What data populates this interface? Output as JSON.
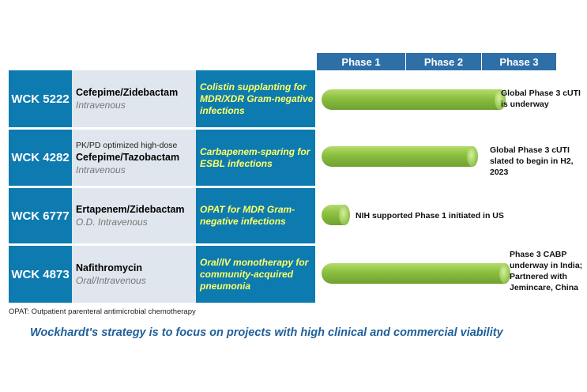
{
  "phases": [
    "Phase 1",
    "Phase 2",
    "Phase 3"
  ],
  "rows": [
    {
      "code": "WCK 5222",
      "pre": "",
      "drug": "Cefepime/Zidebactam",
      "route": "Intravenous",
      "indication": "Colistin supplanting for MDR/XDR Gram-negative infections",
      "status": "Global Phase 3  cUTI is underway",
      "progress_phase": 3.1
    },
    {
      "code": "WCK 4282",
      "pre": "PK/PD optimized  high-dose",
      "drug": "Cefepime/Tazobactam",
      "route": "Intravenous",
      "indication": "Carbapenem-sparing for ESBL infections",
      "status": "Global Phase 3  cUTI slated to begin in H2, 2023",
      "progress_phase": 2.9
    },
    {
      "code": "WCK 6777",
      "pre": "",
      "drug": "Ertapenem/Zidebactam",
      "route": "O.D. Intravenous",
      "indication": "OPAT for MDR Gram-negative infections",
      "status": "NIH supported Phase 1 initiated in US",
      "progress_phase": 0.3
    },
    {
      "code": "WCK 4873",
      "pre": "",
      "drug": "Nafithromycin",
      "route": "Oral/Intravenous",
      "indication": "Oral/IV monotherapy for community-acquired pneumonia",
      "status": "Phase 3 CABP underway in India; Partnered with Jemincare, China",
      "progress_phase": 3.2
    }
  ],
  "footnote": "OPAT: Outpatient parenteral antimicrobial chemotherapy",
  "strategy": "Wockhardt's strategy is to focus on projects with high clinical and commercial viability",
  "colors": {
    "code_bg": "#0e7bb0",
    "indication_text": "#ffff66",
    "bar": "#8dc242",
    "phase_header": "#2f6fa8"
  }
}
